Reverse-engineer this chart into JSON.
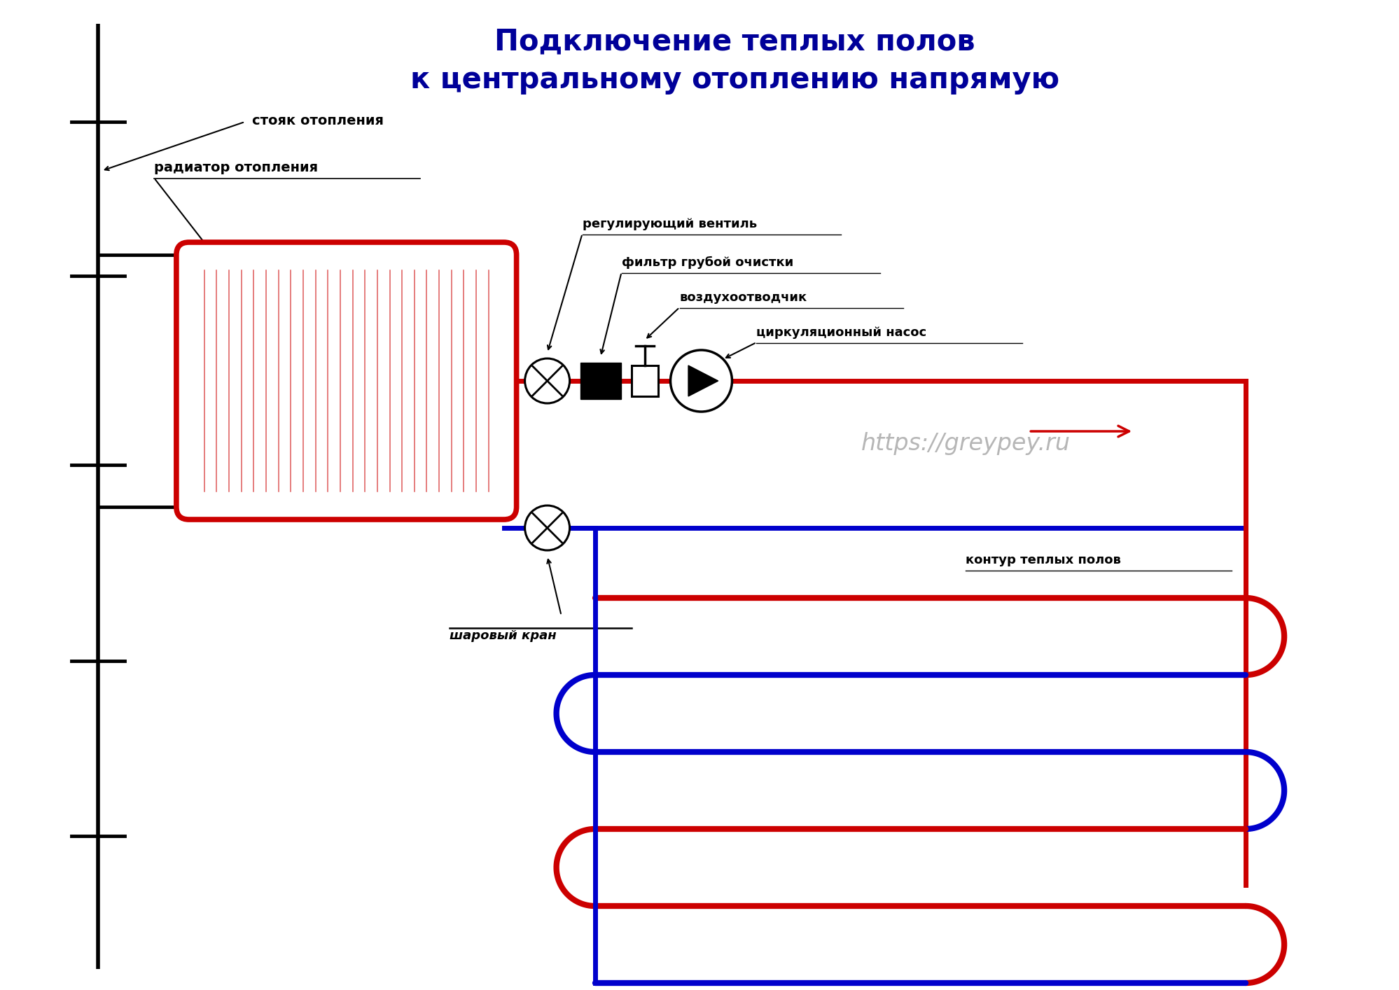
{
  "title_line1": "Подключение теплых полов",
  "title_line2": "к центральному отоплению напрямую",
  "title_color": "#000099",
  "title_fontsize": 30,
  "bg_color": "#ffffff",
  "label_stoyak": "стояк отопления",
  "label_radiator": "радиатор отопления",
  "label_ventil": "регулирующий вентиль",
  "label_filter": "фильтр грубой очистки",
  "label_air": "воздухоотводчик",
  "label_pump": "циркуляционный насос",
  "label_kran": "шаровый кран",
  "label_kontur": "контур теплых полов",
  "label_url": "https://greypey.ru",
  "red": "#cc0000",
  "blue": "#0000cc",
  "black": "#000000",
  "gray_url": "#aaaaaa",
  "lw_pipe": 5,
  "lw_loop": 6,
  "lw_stoyak": 4,
  "lw_label_arrow": 1.5
}
